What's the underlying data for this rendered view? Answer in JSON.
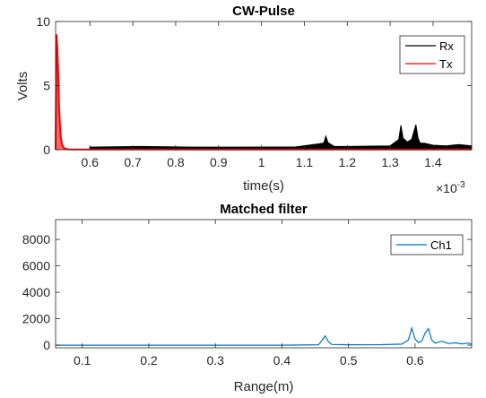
{
  "chart_data": [
    {
      "type": "line",
      "title": "CW-Pulse",
      "xlabel": "time(s)",
      "ylabel": "Volts",
      "x_exponent_label": "×10",
      "x_exponent_power": "-3",
      "xlim": [
        0.52,
        1.49
      ],
      "ylim": [
        0,
        10
      ],
      "xticks": [
        "0.6",
        "0.7",
        "0.8",
        "0.9",
        "1",
        "1.1",
        "1.2",
        "1.3",
        "1.4"
      ],
      "xtick_values": [
        0.6,
        0.7,
        0.8,
        0.9,
        1.0,
        1.1,
        1.2,
        1.3,
        1.4
      ],
      "yticks": [
        "0",
        "5",
        "10"
      ],
      "ytick_values": [
        0,
        5,
        10
      ],
      "legend_position": "top-right",
      "series": [
        {
          "name": "Rx",
          "color": "#000000",
          "noise_band": [
            0.6,
            1.49,
            0.0,
            0.18
          ],
          "x": [
            0.6,
            0.72,
            0.84,
            0.96,
            1.08,
            1.145,
            1.15,
            1.155,
            1.17,
            1.2,
            1.3,
            1.32,
            1.325,
            1.33,
            1.34,
            1.35,
            1.36,
            1.365,
            1.37,
            1.38,
            1.4,
            1.43,
            1.46,
            1.49
          ],
          "values": [
            0.2,
            0.25,
            0.2,
            0.2,
            0.22,
            0.5,
            1.05,
            0.55,
            0.25,
            0.25,
            0.3,
            0.8,
            1.9,
            0.9,
            0.6,
            0.8,
            1.95,
            0.9,
            0.5,
            0.5,
            0.35,
            0.3,
            0.4,
            0.3
          ]
        },
        {
          "name": "Tx",
          "color": "#ff0000",
          "x": [
            0.52,
            0.522,
            0.524,
            0.526,
            0.528,
            0.53,
            0.532,
            0.535,
            0.54,
            0.55,
            0.6,
            0.7,
            0.8,
            0.9,
            1.0,
            1.1,
            1.2,
            1.3,
            1.4,
            1.49
          ],
          "values": [
            0.0,
            9.0,
            8.0,
            6.0,
            3.5,
            2.0,
            1.0,
            0.4,
            0.1,
            0.03,
            0.02,
            0.02,
            0.02,
            0.02,
            0.02,
            0.02,
            0.02,
            0.02,
            0.02,
            0.02
          ]
        }
      ]
    },
    {
      "type": "line",
      "title": "Matched filter",
      "xlabel": "Range(m)",
      "ylabel": "",
      "xlim": [
        0.06,
        0.685
      ],
      "ylim": [
        -200,
        9500
      ],
      "xticks": [
        "0.1",
        "0.2",
        "0.3",
        "0.4",
        "0.5",
        "0.6"
      ],
      "xtick_values": [
        0.1,
        0.2,
        0.3,
        0.4,
        0.5,
        0.6
      ],
      "yticks": [
        "0",
        "2000",
        "4000",
        "6000",
        "8000"
      ],
      "ytick_values": [
        0,
        2000,
        4000,
        6000,
        8000
      ],
      "legend_position": "top-right",
      "series": [
        {
          "name": "Ch1",
          "color": "#0072bd",
          "x": [
            0.06,
            0.1,
            0.2,
            0.3,
            0.4,
            0.455,
            0.46,
            0.465,
            0.47,
            0.475,
            0.5,
            0.55,
            0.58,
            0.59,
            0.595,
            0.6,
            0.605,
            0.61,
            0.615,
            0.62,
            0.625,
            0.63,
            0.64,
            0.65,
            0.66,
            0.67,
            0.68,
            0.685
          ],
          "values": [
            0,
            0,
            0,
            0,
            0,
            30,
            350,
            700,
            250,
            50,
            30,
            40,
            80,
            400,
            1300,
            450,
            200,
            300,
            900,
            1250,
            400,
            150,
            300,
            120,
            180,
            100,
            150,
            80
          ]
        }
      ]
    }
  ]
}
